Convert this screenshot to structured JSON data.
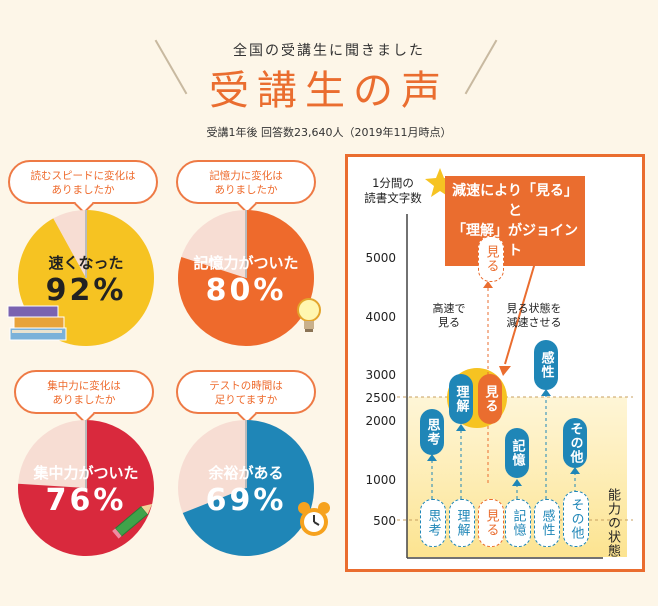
{
  "header": {
    "subtitle": "全国の受講生に聞きました",
    "title": "受講生の声",
    "note": "受講1年後 回答数23,640人（2019年11月時点）"
  },
  "pies": [
    {
      "question": "読むスピードに変化は\nありましたか",
      "label_line1": "速くなった",
      "label_line2": "92%",
      "percent": 92,
      "color": "#f6c322",
      "text_color": "#222222",
      "icon": "books-icon"
    },
    {
      "question": "記憶力に変化は\nありましたか",
      "label_line1": "記憶力がついた",
      "label_line2": "80%",
      "percent": 80,
      "color": "#ee6a2c",
      "text_color": "#ffffff",
      "icon": "lightbulb-icon"
    },
    {
      "question": "集中力に変化は\nありましたか",
      "label_line1": "集中力がついた",
      "label_line2": "76%",
      "percent": 76,
      "color": "#d9293d",
      "text_color": "#ffffff",
      "icon": "pencil-icon"
    },
    {
      "question": "テストの時間は\n足りてますか",
      "label_line1": "余裕がある",
      "label_line2": "69%",
      "percent": 69,
      "color": "#1f86b7",
      "text_color": "#ffffff",
      "icon": "alarm-clock-icon"
    }
  ],
  "chart": {
    "ylabel": "1分間の\n読書文字数",
    "yticks": [
      "5000",
      "4000",
      "3000",
      "2500",
      "2000",
      "1000",
      "500"
    ],
    "xlabel": "能力の状態",
    "callout": "減速により「見る」と\n「理解」がジョイント",
    "note_fast": "高速で\n見る",
    "note_slow": "見る状態を\n減速させる",
    "top_pills": [
      "思考",
      "理解",
      "見る",
      "記憶",
      "感性",
      "その他"
    ],
    "top_mite": "見る",
    "bottom_pills": [
      "思考",
      "理解",
      "見る",
      "記憶",
      "感性",
      "その他"
    ]
  },
  "colors": {
    "accent": "#ea6d2f",
    "blue": "#1f86b7",
    "yellow": "#f6c322",
    "red": "#d9293d"
  }
}
